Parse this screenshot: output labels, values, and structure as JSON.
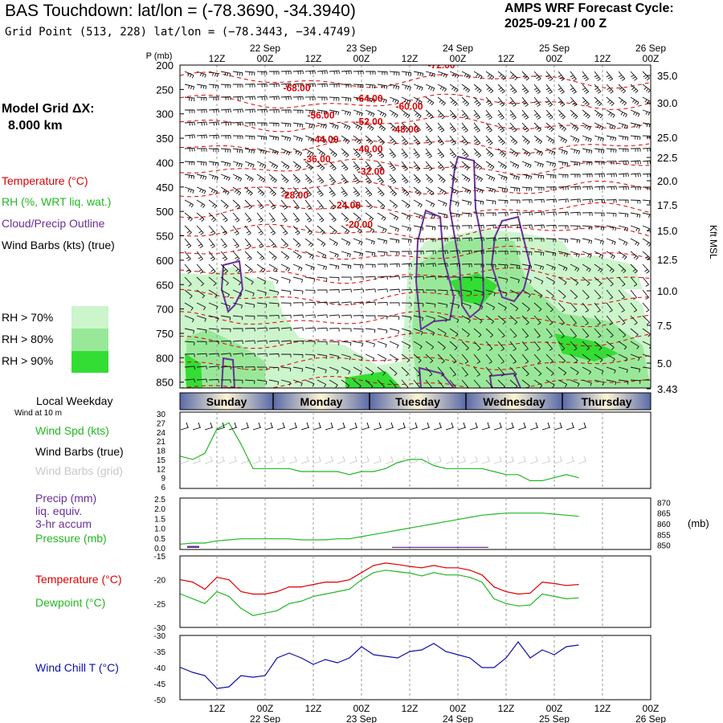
{
  "header": {
    "title": "BAS Touchdown:  lat/lon = (-78.3690, -34.3940)",
    "subtitle": "Grid Point (513, 228) lat/lon = (−78.3443, −34.4749)",
    "cycle_label": "AMPS WRF Forecast Cycle:",
    "cycle_value": "2025-09-21 / 00  Z"
  },
  "model_grid": {
    "label": "Model Grid ΔX:",
    "value": "8.000 km"
  },
  "colors": {
    "temperature": "#dd0000",
    "rh": "#22b822",
    "cloud": "#6a2f9a",
    "wind_chill": "#1010aa",
    "rh70": "#ccf5cc",
    "rh80": "#99e899",
    "rh90": "#33dd33",
    "weekday_band": "#5a6aa8"
  },
  "legend": {
    "temperature": "Temperature (°C)",
    "rh": "RH (%, WRT liq. wat.)",
    "cloud": "Cloud/Precip Outline",
    "wind_barbs": "Wind Barbs (kts) (true)",
    "rh_levels": [
      "RH > 70%",
      "RH > 80%",
      "RH > 90%"
    ]
  },
  "chart_data": [
    {
      "type": "contour-cross-section",
      "ylabel": "P (mb)",
      "ylabel_right": "Kft MSL",
      "pressure_ticks": [
        "200",
        "250",
        "300",
        "350",
        "400",
        "450",
        "500",
        "550",
        "600",
        "650",
        "700",
        "750",
        "800",
        "850"
      ],
      "height_ticks": [
        "35.0",
        "30.0",
        "25.0",
        "22.5",
        "20.0",
        "17.5",
        "15.0",
        "12.5",
        "10.0",
        "7.5",
        "5.0",
        "3.43"
      ],
      "time_ticks": [
        "12Z",
        "00Z",
        "12Z",
        "00Z",
        "12Z",
        "00Z",
        "12Z",
        "00Z",
        "12Z",
        "00Z"
      ],
      "date_ticks": [
        "22 Sep",
        "23 Sep",
        "24 Sep",
        "25 Sep",
        "26 Sep"
      ],
      "temperature_labels": [
        {
          "text": "-72.00",
          "t": 64.5,
          "p": 200
        },
        {
          "text": "-68.00",
          "t": 28.5,
          "p": 247
        },
        {
          "text": "-64.00",
          "t": 46.5,
          "p": 268
        },
        {
          "text": "-60.00",
          "t": 56.5,
          "p": 285
        },
        {
          "text": "-56.00",
          "t": 34.5,
          "p": 303
        },
        {
          "text": "-52.00",
          "t": 46.5,
          "p": 316
        },
        {
          "text": "-48.00",
          "t": 55.5,
          "p": 332
        },
        {
          "text": "-44.00",
          "t": 35.5,
          "p": 352
        },
        {
          "text": "-40.00",
          "t": 46.5,
          "p": 372
        },
        {
          "text": "-36.00",
          "t": 33.5,
          "p": 393
        },
        {
          "text": "-32.00",
          "t": 47,
          "p": 418
        },
        {
          "text": "-28.00",
          "t": 28,
          "p": 467
        },
        {
          "text": "-24.00",
          "t": 41,
          "p": 487
        },
        {
          "text": "-20.00",
          "t": 44,
          "p": 527
        }
      ]
    },
    {
      "type": "line",
      "title": "Local Weekday",
      "sublabel": "Wind at 10 m",
      "weekdays": [
        "Sunday",
        "Monday",
        "Tuesday",
        "Wednesday",
        "Thursday"
      ],
      "series_labels": [
        "Wind Spd (kts)",
        "Wind Barbs (true)",
        "Wind Barbs (grid)"
      ],
      "y_ticks": [
        "30",
        "27",
        "24",
        "21",
        "18",
        "15",
        "12",
        "9",
        "6"
      ],
      "ylim": [
        6,
        30
      ],
      "wind_speed": [
        16,
        15,
        17,
        25,
        27,
        20,
        12,
        12,
        12,
        12,
        11,
        11,
        11,
        11,
        10,
        11,
        11,
        12,
        14,
        15,
        15,
        13,
        12,
        12,
        12,
        12,
        11,
        10,
        10,
        8,
        8,
        9,
        10,
        9
      ]
    },
    {
      "type": "line",
      "series_labels": [
        "Precip (mm)",
        "liq. equiv.",
        "3-hr accum",
        "Pressure (mb)"
      ],
      "y_ticks_left": [
        "2.5",
        "2.0",
        "1.5",
        "1.0",
        "0.5",
        "0.0"
      ],
      "y_ticks_right": [
        "870",
        "865",
        "860",
        "855",
        "850"
      ],
      "right_unit": "(mb)",
      "pressure": [
        850.5,
        851,
        851,
        852,
        852.5,
        853,
        853,
        853,
        853,
        853,
        852.5,
        852.5,
        852.5,
        853,
        853,
        854,
        855,
        856,
        857,
        858,
        859,
        860,
        861,
        862,
        863,
        864,
        864.5,
        865,
        865,
        865,
        865,
        864.5,
        864,
        863.5
      ],
      "precip": [
        0,
        0.1,
        0,
        0,
        0,
        0,
        0,
        0,
        0,
        0,
        0,
        0,
        0,
        0,
        0,
        0,
        0,
        0,
        0.05,
        0.05,
        0.05,
        0.05,
        0.05,
        0.05,
        0.05,
        0.05,
        0,
        0,
        0,
        0,
        0,
        0,
        0,
        0
      ]
    },
    {
      "type": "line",
      "series_labels": [
        "Temperature (°C)",
        "Dewpoint (°C)"
      ],
      "y_ticks": [
        "-15",
        "-20",
        "-25",
        "-30"
      ],
      "ylim": [
        -30,
        -15
      ],
      "temperature": [
        -20,
        -20.5,
        -22,
        -19.5,
        -20,
        -22.5,
        -23,
        -23,
        -22.5,
        -21.5,
        -21.5,
        -21,
        -20.5,
        -20.5,
        -20,
        -18.5,
        -17,
        -16.5,
        -16.8,
        -17.2,
        -17.5,
        -17,
        -17.5,
        -17.5,
        -18,
        -19,
        -21.5,
        -22.5,
        -23,
        -22.8,
        -20.5,
        -20.8,
        -21.2,
        -21
      ],
      "dewpoint": [
        -23,
        -24,
        -25,
        -22.5,
        -23.5,
        -26,
        -27.5,
        -27,
        -26.5,
        -25,
        -24.5,
        -23.5,
        -23,
        -22.5,
        -22,
        -20,
        -18.5,
        -18,
        -18.3,
        -18.6,
        -19.2,
        -18.5,
        -19,
        -19,
        -19.5,
        -20.5,
        -24,
        -25,
        -25.5,
        -25.3,
        -23,
        -23.5,
        -24,
        -23.8
      ]
    },
    {
      "type": "line",
      "series_labels": [
        "Wind Chill T (°C)"
      ],
      "y_ticks": [
        "-30",
        "-35",
        "-40",
        "-45",
        "-50"
      ],
      "ylim": [
        -50,
        -30
      ],
      "wind_chill": [
        -40,
        -41.5,
        -42.5,
        -46.5,
        -46,
        -42.5,
        -43,
        -42.5,
        -37,
        -35.5,
        -37,
        -39,
        -37.5,
        -38.5,
        -37,
        -33.5,
        -36,
        -36.5,
        -37,
        -35,
        -34.5,
        -32.5,
        -35,
        -36,
        -37,
        -40,
        -40,
        -37,
        -32,
        -37,
        -34.5,
        -36,
        -33.5,
        -33
      ]
    }
  ]
}
